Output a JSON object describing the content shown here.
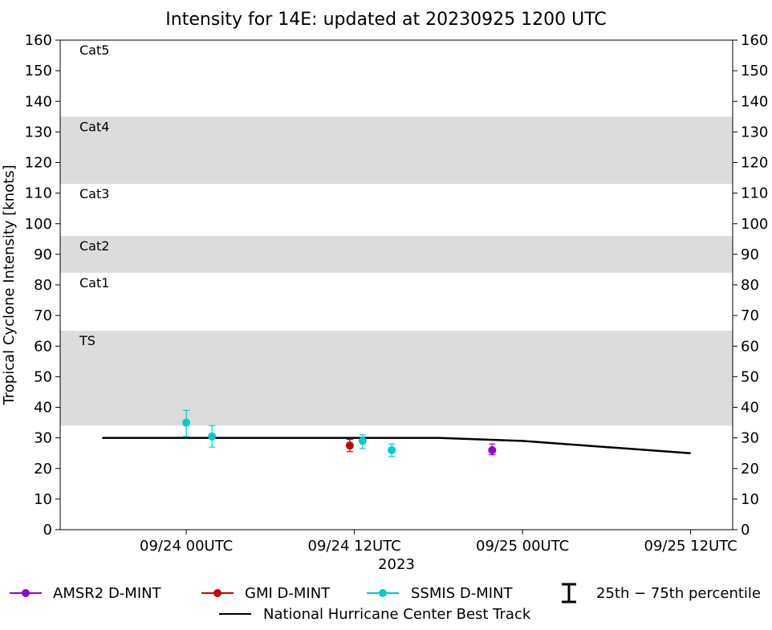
{
  "chart_data": {
    "type": "scatter",
    "title": "Intensity for 14E: updated at 20230925 1200 UTC",
    "ylabel": "Tropical Cyclone Intensity [knots]",
    "xlabel": "2023",
    "xlim": [
      "2023-09-23T15:00",
      "2023-09-25T15:00"
    ],
    "ylim": [
      0,
      160
    ],
    "yticks": [
      0,
      10,
      20,
      30,
      40,
      50,
      60,
      70,
      80,
      90,
      100,
      110,
      120,
      130,
      140,
      150,
      160
    ],
    "xticks": [
      {
        "x": "2023-09-24T00:00",
        "label": "09/24 00UTC"
      },
      {
        "x": "2023-09-24T12:00",
        "label": "09/24 12UTC"
      },
      {
        "x": "2023-09-25T00:00",
        "label": "09/25 00UTC"
      },
      {
        "x": "2023-09-25T12:00",
        "label": "09/25 12UTC"
      }
    ],
    "bands": [
      {
        "label": "TS",
        "y0": 34,
        "y1": 65,
        "fill": "#dcdcdc"
      },
      {
        "label": "Cat1",
        "y0": 65,
        "y1": 84,
        "fill": "#ffffff"
      },
      {
        "label": "Cat2",
        "y0": 84,
        "y1": 96,
        "fill": "#dcdcdc"
      },
      {
        "label": "Cat3",
        "y0": 96,
        "y1": 113,
        "fill": "#ffffff"
      },
      {
        "label": "Cat4",
        "y0": 113,
        "y1": 135,
        "fill": "#dcdcdc"
      },
      {
        "label": "Cat5",
        "y0": 135,
        "y1": 160,
        "fill": "#ffffff"
      }
    ],
    "best_track": {
      "name": "National Hurricane Center Best Track",
      "color": "#000000",
      "points": [
        {
          "x": "2023-09-23T18:00",
          "y": 30
        },
        {
          "x": "2023-09-24T00:00",
          "y": 30
        },
        {
          "x": "2023-09-24T06:00",
          "y": 30
        },
        {
          "x": "2023-09-24T12:00",
          "y": 30
        },
        {
          "x": "2023-09-24T18:00",
          "y": 30
        },
        {
          "x": "2023-09-25T00:00",
          "y": 29
        },
        {
          "x": "2023-09-25T06:00",
          "y": 27
        },
        {
          "x": "2023-09-25T12:00",
          "y": 25
        }
      ]
    },
    "series": [
      {
        "name": "AMSR2 D-MINT",
        "color": "#9400d3",
        "points": [
          {
            "x": "2023-09-24T21:50",
            "y": 26,
            "low": 24.5,
            "high": 28
          }
        ]
      },
      {
        "name": "GMI D-MINT",
        "color": "#cc0000",
        "points": [
          {
            "x": "2023-09-24T11:40",
            "y": 27.5,
            "low": 25.5,
            "high": 29.5
          }
        ]
      },
      {
        "name": "SSMIS D-MINT",
        "color": "#00cccc",
        "points": [
          {
            "x": "2023-09-24T00:00",
            "y": 35,
            "low": 30.5,
            "high": 39
          },
          {
            "x": "2023-09-24T01:50",
            "y": 30.5,
            "low": 27,
            "high": 34
          },
          {
            "x": "2023-09-24T12:35",
            "y": 29,
            "low": 26.5,
            "high": 31
          },
          {
            "x": "2023-09-24T14:40",
            "y": 26,
            "low": 24,
            "high": 28
          }
        ]
      }
    ],
    "legend": {
      "placement": "bottom",
      "percentile_label": "25th − 75th percentile"
    }
  }
}
